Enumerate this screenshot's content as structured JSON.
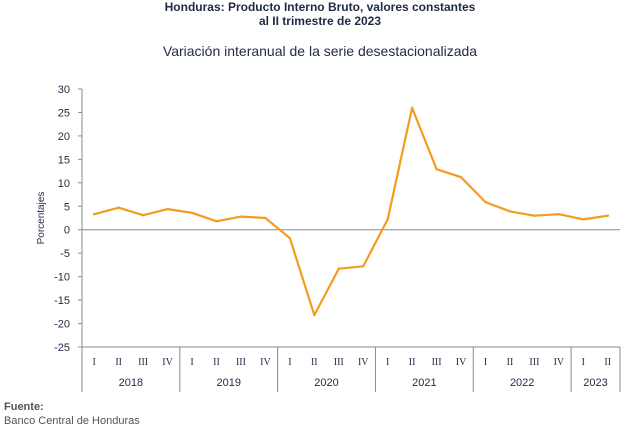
{
  "header": {
    "title_line1": "Honduras: Producto Interno Bruto, valores constantes",
    "title_line2": "al II trimestre de 2023",
    "subtitle": "Variación interanual de la serie desestacionalizada"
  },
  "footer": {
    "source_label": "Fuente:",
    "source_detail": "Banco Central de Honduras"
  },
  "chart_data": {
    "type": "line",
    "title": "Variación interanual de la serie desestacionalizada",
    "ylabel": "Porcentajes",
    "xlabel": "",
    "ylim": [
      -25,
      30
    ],
    "yticks": [
      -25,
      -20,
      -15,
      -10,
      -5,
      0,
      5,
      10,
      15,
      20,
      25,
      30
    ],
    "grid": false,
    "color": "#f39c1e",
    "quarters": [
      "I",
      "II",
      "III",
      "IV",
      "I",
      "II",
      "III",
      "IV",
      "I",
      "II",
      "III",
      "IV",
      "I",
      "II",
      "III",
      "IV",
      "I",
      "II",
      "III",
      "IV",
      "I",
      "II"
    ],
    "years": [
      {
        "label": "2018",
        "count": 4
      },
      {
        "label": "2019",
        "count": 4
      },
      {
        "label": "2020",
        "count": 4
      },
      {
        "label": "2021",
        "count": 4
      },
      {
        "label": "2022",
        "count": 4
      },
      {
        "label": "2023",
        "count": 2
      }
    ],
    "series": [
      {
        "values": [
          3.3,
          4.7,
          3.1,
          4.4,
          3.6,
          1.8,
          2.8,
          2.5,
          -1.8,
          -18.2,
          -8.3,
          -7.8,
          2.2,
          26.0,
          12.9,
          11.2,
          5.9,
          3.9,
          3.0,
          3.3,
          2.2,
          3.0
        ]
      }
    ]
  }
}
